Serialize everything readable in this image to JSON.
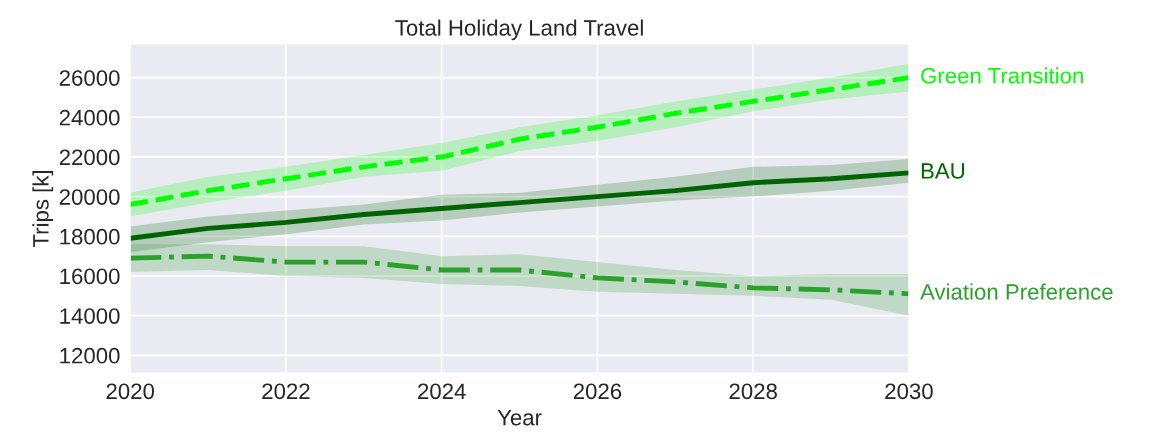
{
  "chart_data": {
    "type": "line",
    "title": "Total Holiday Land Travel",
    "xlabel": "Year",
    "ylabel": "Trips [k]",
    "x": [
      2020,
      2021,
      2022,
      2023,
      2024,
      2025,
      2026,
      2027,
      2028,
      2029,
      2030
    ],
    "xlim": [
      2020,
      2030
    ],
    "xticks": [
      2020,
      2022,
      2024,
      2026,
      2028,
      2030
    ],
    "ylim": [
      11100,
      27700
    ],
    "yticks": [
      12000,
      14000,
      16000,
      18000,
      20000,
      22000,
      24000,
      26000
    ],
    "grid": true,
    "legend": false,
    "series": [
      {
        "name": "Green Transition",
        "color": "#00ff00",
        "line_style": "dashed",
        "values": [
          19600,
          20300,
          20900,
          21500,
          22000,
          22900,
          23500,
          24200,
          24800,
          25400,
          26000
        ],
        "lower": [
          19000,
          19700,
          20300,
          21000,
          21300,
          22300,
          22800,
          23500,
          24300,
          24900,
          25300
        ],
        "upper": [
          20200,
          21000,
          21500,
          22100,
          22700,
          23500,
          24100,
          24800,
          25400,
          26000,
          26700
        ]
      },
      {
        "name": "BAU",
        "color": "#006400",
        "line_style": "solid",
        "values": [
          17900,
          18400,
          18700,
          19100,
          19400,
          19700,
          20000,
          20300,
          20700,
          20900,
          21200
        ],
        "lower": [
          17200,
          17700,
          18100,
          18600,
          18800,
          19200,
          19500,
          19800,
          20000,
          20300,
          20700
        ],
        "upper": [
          18500,
          19000,
          19300,
          19600,
          20100,
          20200,
          20600,
          21000,
          21500,
          21600,
          21900
        ]
      },
      {
        "name": "Aviation Preference",
        "color": "#2ca02c",
        "line_style": "dashdot",
        "values": [
          16900,
          17000,
          16700,
          16700,
          16300,
          16300,
          15900,
          15700,
          15400,
          15300,
          15100
        ],
        "lower": [
          16200,
          16300,
          16000,
          15900,
          15600,
          15500,
          15200,
          15100,
          15000,
          14800,
          14000
        ],
        "upper": [
          17600,
          17600,
          17500,
          17500,
          17000,
          17100,
          16700,
          16300,
          16000,
          16100,
          16100
        ]
      }
    ]
  }
}
